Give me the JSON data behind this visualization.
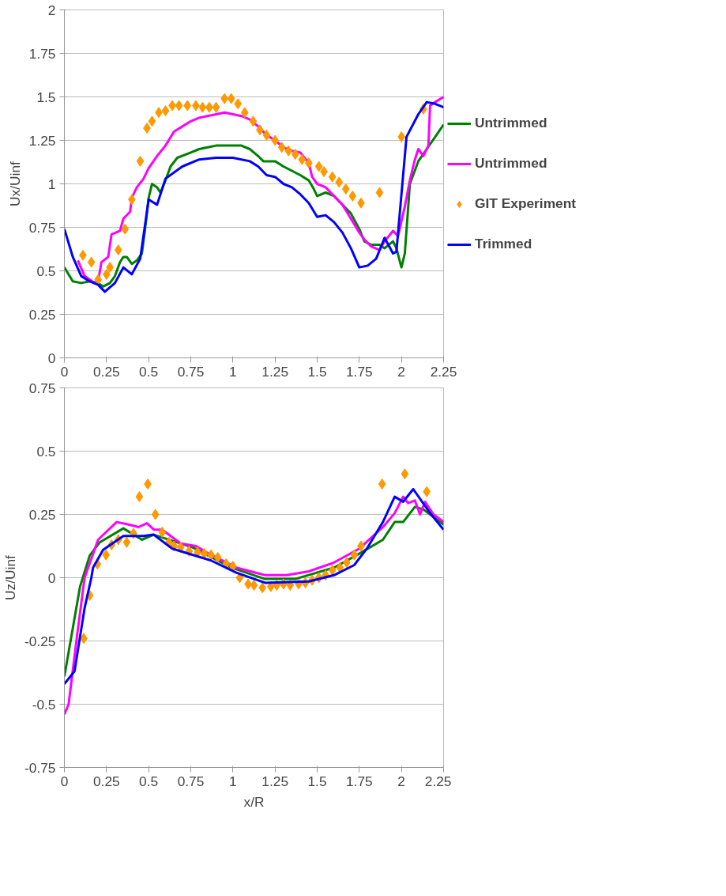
{
  "chart_data": [
    {
      "type": "line",
      "ylabel": "Ux/Uinf",
      "xlim": [
        0,
        2.25
      ],
      "xticks": [
        0,
        0.25,
        0.5,
        0.75,
        1,
        1.25,
        1.5,
        1.75,
        2,
        2.25
      ],
      "ylim": [
        0,
        2
      ],
      "yticks": [
        0,
        0.25,
        0.5,
        0.75,
        1,
        1.25,
        1.5,
        1.75,
        2
      ],
      "grid": "y",
      "legend": "right",
      "series": [
        {
          "name": "Untrimmed",
          "color": "#008000",
          "x": [
            0,
            0.05,
            0.1,
            0.15,
            0.2,
            0.23,
            0.27,
            0.3,
            0.33,
            0.35,
            0.37,
            0.4,
            0.43,
            0.46,
            0.48,
            0.5,
            0.52,
            0.55,
            0.57,
            0.6,
            0.63,
            0.67,
            0.75,
            0.8,
            0.9,
            1.0,
            1.05,
            1.1,
            1.15,
            1.18,
            1.25,
            1.3,
            1.4,
            1.45,
            1.48,
            1.5,
            1.55,
            1.6,
            1.7,
            1.75,
            1.78,
            1.82,
            1.87,
            1.9,
            1.95,
            1.97,
            2.0,
            2.02,
            2.05,
            2.1,
            2.15,
            2.2,
            2.25
          ],
          "values": [
            0.52,
            0.44,
            0.43,
            0.44,
            0.43,
            0.41,
            0.43,
            0.47,
            0.55,
            0.58,
            0.58,
            0.54,
            0.56,
            0.6,
            0.75,
            0.92,
            1.0,
            0.98,
            0.95,
            1.02,
            1.1,
            1.15,
            1.18,
            1.2,
            1.22,
            1.22,
            1.22,
            1.2,
            1.16,
            1.13,
            1.13,
            1.1,
            1.05,
            1.02,
            0.97,
            0.93,
            0.95,
            0.93,
            0.83,
            0.74,
            0.67,
            0.65,
            0.65,
            0.63,
            0.67,
            0.63,
            0.52,
            0.6,
            1.0,
            1.13,
            1.2,
            1.27,
            1.34
          ]
        },
        {
          "name": "Untrimmed",
          "color": "#ff00ff",
          "x": [
            0.08,
            0.12,
            0.15,
            0.18,
            0.2,
            0.22,
            0.26,
            0.28,
            0.33,
            0.35,
            0.39,
            0.4,
            0.43,
            0.47,
            0.5,
            0.55,
            0.6,
            0.65,
            0.7,
            0.75,
            0.8,
            0.9,
            0.95,
            1.0,
            1.05,
            1.1,
            1.15,
            1.2,
            1.25,
            1.3,
            1.35,
            1.4,
            1.45,
            1.47,
            1.5,
            1.55,
            1.6,
            1.65,
            1.7,
            1.75,
            1.78,
            1.82,
            1.87,
            1.9,
            1.95,
            1.98,
            2.02,
            2.05,
            2.08,
            2.1,
            2.13,
            2.16,
            2.17,
            2.2,
            2.25
          ],
          "values": [
            0.56,
            0.47,
            0.45,
            0.43,
            0.44,
            0.55,
            0.58,
            0.71,
            0.73,
            0.8,
            0.84,
            0.92,
            0.98,
            1.03,
            1.09,
            1.16,
            1.22,
            1.3,
            1.33,
            1.36,
            1.38,
            1.4,
            1.41,
            1.4,
            1.39,
            1.37,
            1.33,
            1.28,
            1.25,
            1.21,
            1.19,
            1.18,
            1.12,
            1.04,
            1.0,
            0.98,
            0.93,
            0.88,
            0.8,
            0.72,
            0.68,
            0.64,
            0.62,
            0.67,
            0.73,
            0.7,
            0.87,
            1.02,
            1.14,
            1.2,
            1.16,
            1.22,
            1.45,
            1.47,
            1.5
          ]
        },
        {
          "name": "GIT Experiment",
          "type": "scatter",
          "marker": "diamond",
          "color": "#ff9900",
          "x": [
            0.11,
            0.16,
            0.2,
            0.25,
            0.27,
            0.32,
            0.36,
            0.4,
            0.45,
            0.49,
            0.52,
            0.56,
            0.6,
            0.64,
            0.68,
            0.73,
            0.78,
            0.82,
            0.86,
            0.9,
            0.95,
            0.99,
            1.03,
            1.07,
            1.12,
            1.16,
            1.2,
            1.25,
            1.29,
            1.33,
            1.37,
            1.41,
            1.45,
            1.51,
            1.54,
            1.59,
            1.63,
            1.67,
            1.71,
            1.76,
            1.87,
            2.0,
            2.13
          ],
          "values": [
            0.59,
            0.55,
            0.45,
            0.48,
            0.52,
            0.62,
            0.74,
            0.91,
            1.13,
            1.32,
            1.36,
            1.41,
            1.42,
            1.45,
            1.45,
            1.45,
            1.45,
            1.44,
            1.44,
            1.44,
            1.49,
            1.49,
            1.46,
            1.41,
            1.36,
            1.31,
            1.28,
            1.25,
            1.21,
            1.19,
            1.17,
            1.14,
            1.12,
            1.1,
            1.07,
            1.04,
            1.01,
            0.97,
            0.93,
            0.89,
            0.95,
            1.27,
            1.43
          ]
        },
        {
          "name": "Trimmed",
          "color": "#0000ff",
          "x": [
            0,
            0.05,
            0.1,
            0.15,
            0.2,
            0.24,
            0.3,
            0.35,
            0.4,
            0.45,
            0.5,
            0.55,
            0.6,
            0.7,
            0.8,
            0.9,
            1.0,
            1.1,
            1.15,
            1.2,
            1.25,
            1.3,
            1.35,
            1.4,
            1.45,
            1.5,
            1.55,
            1.6,
            1.65,
            1.7,
            1.75,
            1.8,
            1.85,
            1.9,
            1.95,
            1.97,
            2.03,
            2.1,
            2.15,
            2.2,
            2.25
          ],
          "values": [
            0.74,
            0.58,
            0.47,
            0.44,
            0.42,
            0.38,
            0.43,
            0.52,
            0.48,
            0.57,
            0.91,
            0.88,
            1.03,
            1.1,
            1.14,
            1.15,
            1.15,
            1.13,
            1.1,
            1.05,
            1.04,
            1.0,
            0.98,
            0.94,
            0.89,
            0.81,
            0.82,
            0.78,
            0.72,
            0.63,
            0.52,
            0.53,
            0.57,
            0.69,
            0.6,
            0.61,
            1.27,
            1.4,
            1.47,
            1.46,
            1.44
          ]
        }
      ]
    },
    {
      "type": "line",
      "xlabel": "x/R",
      "ylabel": "Uz/Uinf",
      "xlim": [
        0,
        2.25
      ],
      "xticks": [
        0,
        0.25,
        0.5,
        0.75,
        1,
        1.25,
        1.5,
        1.75,
        2,
        2.25
      ],
      "ylim": [
        -0.75,
        0.75
      ],
      "yticks": [
        -0.75,
        -0.5,
        -0.25,
        0,
        0.25,
        0.5,
        0.75
      ],
      "grid": "y",
      "series": [
        {
          "color": "#008000",
          "x": [
            0,
            0.093,
            0.15,
            0.21,
            0.35,
            0.46,
            0.53,
            0.76,
            0.99,
            1.19,
            1.37,
            1.6,
            1.75,
            1.89,
            1.96,
            2.01,
            2.08,
            2.13,
            2.19,
            2.25
          ],
          "values": [
            -0.39,
            -0.035,
            0.087,
            0.14,
            0.195,
            0.15,
            0.17,
            0.12,
            0.04,
            -0.005,
            -0.005,
            0.04,
            0.095,
            0.15,
            0.22,
            0.22,
            0.28,
            0.27,
            0.24,
            0.21
          ]
        },
        {
          "color": "#ff00ff",
          "x": [
            0,
            0.025,
            0.077,
            0.12,
            0.2,
            0.31,
            0.38,
            0.44,
            0.49,
            0.53,
            0.58,
            0.69,
            0.78,
            0.87,
            1.02,
            1.19,
            1.32,
            1.45,
            1.6,
            1.75,
            1.89,
            1.96,
            2.01,
            2.04,
            2.08,
            2.11,
            2.14,
            2.19,
            2.25
          ],
          "values": [
            -0.54,
            -0.5,
            -0.22,
            0,
            0.15,
            0.22,
            0.21,
            0.2,
            0.215,
            0.19,
            0.19,
            0.135,
            0.125,
            0.09,
            0.04,
            0.01,
            0.01,
            0.025,
            0.06,
            0.115,
            0.2,
            0.255,
            0.32,
            0.295,
            0.305,
            0.25,
            0.3,
            0.25,
            0.22
          ]
        },
        {
          "type": "scatter",
          "marker": "diamond",
          "color": "#ff9900",
          "x": [
            0.115,
            0.15,
            0.196,
            0.247,
            0.28,
            0.32,
            0.37,
            0.41,
            0.445,
            0.495,
            0.54,
            0.58,
            0.62,
            0.65,
            0.69,
            0.74,
            0.79,
            0.83,
            0.87,
            0.91,
            0.96,
            1.0,
            1.04,
            1.09,
            1.125,
            1.175,
            1.225,
            1.26,
            1.3,
            1.34,
            1.39,
            1.43,
            1.47,
            1.51,
            1.55,
            1.59,
            1.635,
            1.675,
            1.72,
            1.76,
            1.885,
            2.02,
            2.15
          ],
          "values": [
            -0.24,
            -0.07,
            0.054,
            0.09,
            0.13,
            0.15,
            0.14,
            0.175,
            0.32,
            0.37,
            0.25,
            0.18,
            0.14,
            0.125,
            0.12,
            0.105,
            0.1,
            0.095,
            0.09,
            0.08,
            0.055,
            0.045,
            0,
            -0.025,
            -0.03,
            -0.04,
            -0.035,
            -0.03,
            -0.025,
            -0.03,
            -0.025,
            -0.02,
            -0.01,
            0,
            0.01,
            0.03,
            0.04,
            0.06,
            0.09,
            0.125,
            0.37,
            0.41,
            0.34
          ]
        },
        {
          "color": "#0000ff",
          "x": [
            0,
            0.06,
            0.12,
            0.16,
            0.17,
            0.23,
            0.35,
            0.47,
            0.53,
            0.64,
            0.87,
            1.02,
            1.19,
            1.45,
            1.6,
            1.72,
            1.8,
            1.89,
            1.96,
            2.01,
            2.07,
            2.17,
            2.25
          ],
          "values": [
            -0.42,
            -0.37,
            -0.12,
            0,
            0.04,
            0.11,
            0.165,
            0.165,
            0.17,
            0.115,
            0.068,
            0.02,
            -0.02,
            -0.015,
            0.01,
            0.05,
            0.12,
            0.22,
            0.32,
            0.3,
            0.35,
            0.255,
            0.19
          ]
        }
      ]
    }
  ]
}
